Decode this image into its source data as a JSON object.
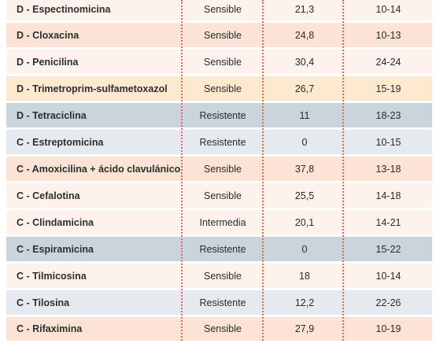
{
  "colors": {
    "sensible_even": "#fdf2ec",
    "sensible_odd": "#fce3d5",
    "highlight": "#fde9cf",
    "resistente_dark": "#c9d4dc",
    "resistente_light": "#e4eaef",
    "intermedia": "#fdf2ec",
    "separator": "#e36b4e"
  },
  "rows": [
    {
      "antibiotic": "D - Espectinomicina",
      "result": "Sensible",
      "value": "21,3",
      "range": "10-14",
      "bg": "#fdf2ec"
    },
    {
      "antibiotic": "D - Cloxacina",
      "result": "Sensible",
      "value": "24,8",
      "range": "10-13",
      "bg": "#fce3d5"
    },
    {
      "antibiotic": "D - Penicilina",
      "result": "Sensible",
      "value": "30,4",
      "range": "24-24",
      "bg": "#fdf2ec"
    },
    {
      "antibiotic": "D - Trimetroprim-sulfametoxazol",
      "result": "Sensible",
      "value": "26,7",
      "range": "15-19",
      "bg": "#fde9cf"
    },
    {
      "antibiotic": "D - Tetraciclina",
      "result": "Resistente",
      "value": "11",
      "range": "18-23",
      "bg": "#c9d4dc"
    },
    {
      "antibiotic": "C - Estreptomicina",
      "result": "Resistente",
      "value": "0",
      "range": "10-15",
      "bg": "#e4eaef"
    },
    {
      "antibiotic": "C - Amoxicilina + ácido clavulánico",
      "result": "Sensible",
      "value": "37,8",
      "range": "13-18",
      "bg": "#fce3d5"
    },
    {
      "antibiotic": "C - Cefalotina",
      "result": "Sensible",
      "value": "25,5",
      "range": "14-18",
      "bg": "#fdf2ec"
    },
    {
      "antibiotic": "C - Clindamicina",
      "result": "Intermedia",
      "value": "20,1",
      "range": "14-21",
      "bg": "#fdf2ec"
    },
    {
      "antibiotic": "C - Espiramicina",
      "result": "Resistente",
      "value": "0",
      "range": "15-22",
      "bg": "#c9d4dc"
    },
    {
      "antibiotic": "C - Tilmicosina",
      "result": "Sensible",
      "value": "18",
      "range": "10-14",
      "bg": "#fdf2ec"
    },
    {
      "antibiotic": "C - Tilosina",
      "result": "Resistente",
      "value": "12,2",
      "range": "22-26",
      "bg": "#e4eaef"
    },
    {
      "antibiotic": "C - Rifaximina",
      "result": "Sensible",
      "value": "27,9",
      "range": "10-19",
      "bg": "#fce3d5"
    }
  ]
}
